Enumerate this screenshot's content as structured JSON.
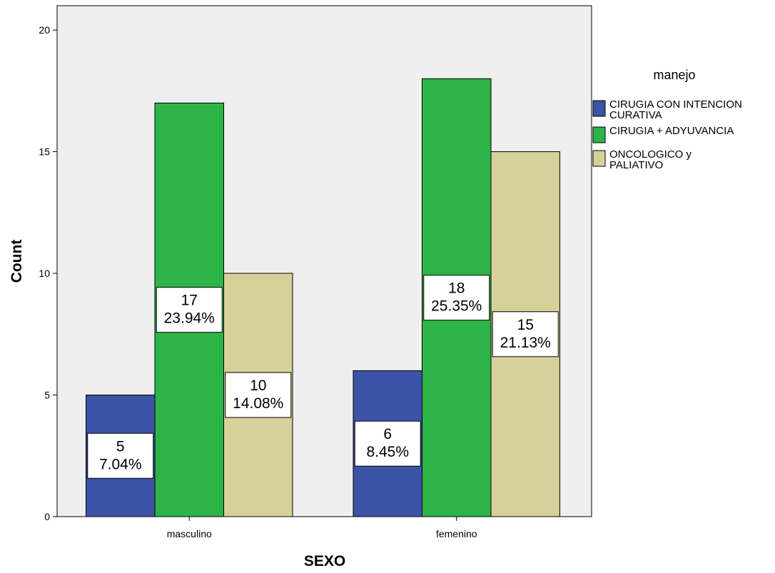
{
  "chart_data": {
    "type": "bar",
    "xlabel": "SEXO",
    "ylabel": "Count",
    "categories": [
      "masculino",
      "femenino"
    ],
    "ylim": [
      0,
      21
    ],
    "yticks": [
      0,
      5,
      10,
      15,
      20
    ],
    "grid": false,
    "legend": {
      "title": "manejo",
      "placement": "right",
      "entries": [
        [
          "CIRUGIA CON INTENCION",
          "CURATIVA"
        ],
        [
          "CIRUGIA + ADYUVANCIA"
        ],
        [
          "ONCOLOGICO y",
          "PALIATIVO"
        ]
      ]
    },
    "series": [
      {
        "name": "CIRUGIA CON INTENCION CURATIVA",
        "color": "#3a53a4",
        "values": [
          5,
          6
        ],
        "labels": [
          [
            "5",
            "7.04%"
          ],
          [
            "6",
            "8.45%"
          ]
        ]
      },
      {
        "name": "CIRUGIA + ADYUVANCIA",
        "color": "#2db449",
        "values": [
          17,
          18
        ],
        "labels": [
          [
            "17",
            "23.94%"
          ],
          [
            "18",
            "25.35%"
          ]
        ]
      },
      {
        "name": "ONCOLOGICO y PALIATIVO",
        "color": "#d6d09a",
        "values": [
          10,
          15
        ],
        "labels": [
          [
            "10",
            "14.08%"
          ],
          [
            "15",
            "21.13%"
          ]
        ]
      }
    ]
  }
}
